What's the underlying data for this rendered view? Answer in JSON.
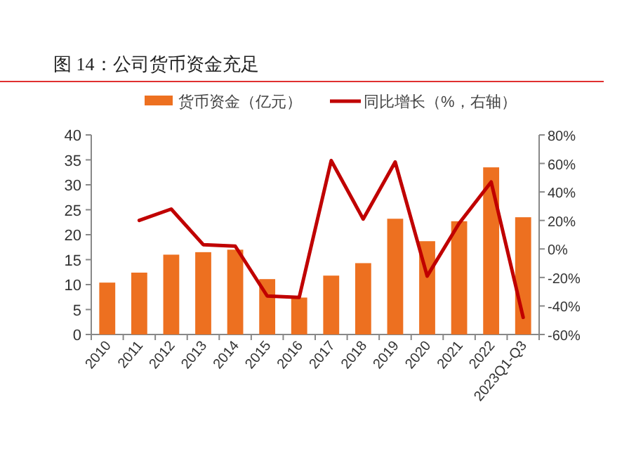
{
  "chart_data": {
    "type": "bar",
    "title": "图 14：公司货币资金充足",
    "categories": [
      "2010",
      "2011",
      "2012",
      "2013",
      "2014",
      "2015",
      "2016",
      "2017",
      "2018",
      "2019",
      "2020",
      "2021",
      "2022",
      "2023Q1-Q3"
    ],
    "series": [
      {
        "name": "货币资金（亿元）",
        "color": "#ed7020",
        "values": [
          10.4,
          12.4,
          16,
          16.5,
          17,
          11.1,
          7.4,
          11.8,
          14.3,
          23.2,
          18.7,
          22.7,
          33.5,
          23.5
        ]
      },
      {
        "name": "同比增长（%，右轴）",
        "type": "line",
        "axis": "y2",
        "color": "#c00000",
        "values": [
          null,
          20,
          28,
          3,
          2,
          -33,
          -34,
          62,
          21,
          61,
          -19,
          18,
          47,
          -48
        ]
      }
    ],
    "ylim": [
      0,
      40
    ],
    "yticks": [
      0,
      5,
      10,
      15,
      20,
      25,
      30,
      35,
      40
    ],
    "y2lim": [
      -60,
      80
    ],
    "y2ticks": [
      {
        "value": -60,
        "label": "-60%"
      },
      {
        "value": -40,
        "label": "-40%"
      },
      {
        "value": -20,
        "label": "-20%"
      },
      {
        "value": 0,
        "label": "0%"
      },
      {
        "value": 20,
        "label": "20%"
      },
      {
        "value": 40,
        "label": "40%"
      },
      {
        "value": 60,
        "label": "60%"
      },
      {
        "value": 80,
        "label": "80%"
      }
    ],
    "legend": "top",
    "grid": false
  }
}
